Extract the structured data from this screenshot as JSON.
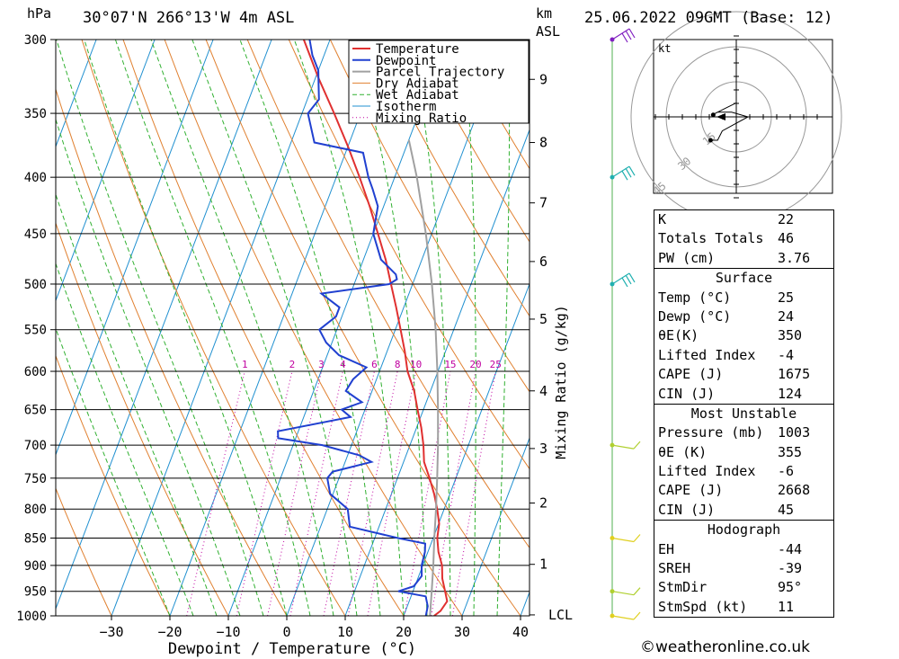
{
  "header": {
    "pressure_unit": "hPa",
    "location": "30°07'N 266°13'W 4m ASL",
    "height_unit_line1": "km",
    "height_unit_line2": "ASL",
    "datetime": "25.06.2022 09GMT (Base: 12)"
  },
  "footer": {
    "copyright": "©weatheronline.co.uk"
  },
  "chart_data": {
    "type": "line",
    "xlabel": "Dewpoint / Temperature (°C)",
    "ylabel_right": "Mixing Ratio (g/kg)",
    "pressure_levels": [
      300,
      350,
      400,
      450,
      500,
      550,
      600,
      650,
      700,
      750,
      800,
      850,
      900,
      950,
      1000
    ],
    "temperature_ticks": [
      -30,
      -20,
      -10,
      0,
      10,
      20,
      30,
      40
    ],
    "height_km_ticks": [
      {
        "label": "9",
        "p": 326
      },
      {
        "label": "8",
        "p": 372
      },
      {
        "label": "7",
        "p": 422
      },
      {
        "label": "6",
        "p": 477
      },
      {
        "label": "5",
        "p": 538
      },
      {
        "label": "4",
        "p": 625
      },
      {
        "label": "3",
        "p": 705
      },
      {
        "label": "2",
        "p": 790
      },
      {
        "label": "1",
        "p": 898
      },
      {
        "label": "LCL",
        "p": 998
      }
    ],
    "mixing_ratio_labels": [
      "1",
      "2",
      "3",
      "4",
      "6",
      "8",
      "10",
      "15",
      "20",
      "25"
    ],
    "legend": [
      "Temperature",
      "Dewpoint",
      "Parcel Trajectory",
      "Dry Adiabat",
      "Wet Adiabat",
      "Isotherm",
      "Mixing Ratio"
    ],
    "colors": {
      "Temperature": "#e03030",
      "Dewpoint": "#2040d0",
      "Parcel Trajectory": "#a0a0a0",
      "Dry Adiabat": "#e08030",
      "Wet Adiabat": "#30b030",
      "Isotherm": "#2090d0",
      "Mixing Ratio": "#c000a0"
    },
    "series": [
      {
        "name": "Temperature",
        "points": [
          [
            1000,
            25.2
          ],
          [
            990,
            26.0
          ],
          [
            970,
            26.5
          ],
          [
            950,
            25.5
          ],
          [
            925,
            24.2
          ],
          [
            900,
            23.3
          ],
          [
            875,
            21.8
          ],
          [
            850,
            20.7
          ],
          [
            825,
            20.1
          ],
          [
            800,
            18.8
          ],
          [
            775,
            17.3
          ],
          [
            750,
            15.5
          ],
          [
            725,
            13.5
          ],
          [
            700,
            12.3
          ],
          [
            675,
            10.8
          ],
          [
            650,
            9.0
          ],
          [
            625,
            7.2
          ],
          [
            600,
            4.8
          ],
          [
            575,
            3.0
          ],
          [
            550,
            0.9
          ],
          [
            525,
            -1.3
          ],
          [
            500,
            -3.7
          ],
          [
            475,
            -6.2
          ],
          [
            450,
            -9.2
          ],
          [
            425,
            -12.4
          ],
          [
            400,
            -16.0
          ],
          [
            375,
            -20.0
          ],
          [
            350,
            -24.5
          ],
          [
            325,
            -29.5
          ],
          [
            300,
            -34.5
          ]
        ]
      },
      {
        "name": "Dewpoint",
        "points": [
          [
            1000,
            23.8
          ],
          [
            980,
            23.5
          ],
          [
            960,
            22.5
          ],
          [
            950,
            17.5
          ],
          [
            940,
            19.8
          ],
          [
            920,
            20.5
          ],
          [
            900,
            19.8
          ],
          [
            875,
            19.5
          ],
          [
            860,
            19.0
          ],
          [
            850,
            14.0
          ],
          [
            830,
            5.0
          ],
          [
            800,
            3.5
          ],
          [
            775,
            -0.5
          ],
          [
            750,
            -2.0
          ],
          [
            740,
            -1.5
          ],
          [
            725,
            4.5
          ],
          [
            715,
            2.0
          ],
          [
            700,
            -5.0
          ],
          [
            690,
            -13.0
          ],
          [
            680,
            -13.5
          ],
          [
            660,
            -2.0
          ],
          [
            650,
            -4.0
          ],
          [
            640,
            -1.0
          ],
          [
            625,
            -4.5
          ],
          [
            610,
            -4.0
          ],
          [
            595,
            -2.5
          ],
          [
            580,
            -8.0
          ],
          [
            565,
            -11.0
          ],
          [
            550,
            -13.0
          ],
          [
            535,
            -11.0
          ],
          [
            525,
            -11.0
          ],
          [
            510,
            -15.0
          ],
          [
            500,
            -4.0
          ],
          [
            495,
            -3.0
          ],
          [
            490,
            -3.5
          ],
          [
            475,
            -7.0
          ],
          [
            450,
            -10.0
          ],
          [
            425,
            -11.0
          ],
          [
            410,
            -13.0
          ],
          [
            400,
            -14.5
          ],
          [
            380,
            -17.0
          ],
          [
            372,
            -26.0
          ],
          [
            350,
            -29.0
          ],
          [
            340,
            -28.0
          ],
          [
            330,
            -29.0
          ],
          [
            320,
            -30.0
          ],
          [
            310,
            -32.0
          ],
          [
            300,
            -33.5
          ]
        ]
      },
      {
        "name": "Parcel Trajectory",
        "points": [
          [
            1000,
            24.5
          ],
          [
            950,
            23.2
          ],
          [
            900,
            21.8
          ],
          [
            850,
            20.2
          ],
          [
            800,
            18.6
          ],
          [
            750,
            16.8
          ],
          [
            700,
            14.8
          ],
          [
            650,
            12.5
          ],
          [
            600,
            9.9
          ],
          [
            550,
            6.9
          ],
          [
            500,
            3.3
          ],
          [
            450,
            -1.0
          ],
          [
            400,
            -6.2
          ],
          [
            370,
            -10.0
          ]
        ]
      }
    ],
    "hodograph": {
      "unit": "kt",
      "ring_labels": [
        "15",
        "30",
        "45"
      ],
      "points": [
        [
          0,
          6
        ],
        [
          -4,
          4
        ],
        [
          -10,
          1
        ],
        [
          -8,
          2
        ],
        [
          -2,
          2
        ],
        [
          5,
          0
        ],
        [
          -6,
          -6
        ],
        [
          -8,
          -10
        ],
        [
          -11,
          -10
        ]
      ],
      "storm_motion_dir": 95,
      "storm_motion_kt": 11
    },
    "wind_barb_levels": [
      300,
      400,
      500,
      700,
      850,
      950,
      1000
    ]
  },
  "indices": {
    "top": [
      {
        "label": "K",
        "value": "22"
      },
      {
        "label": "Totals Totals",
        "value": "46"
      },
      {
        "label": "PW (cm)",
        "value": "3.76"
      }
    ],
    "surface": {
      "title": "Surface",
      "rows": [
        {
          "label": "Temp (°C)",
          "value": "25"
        },
        {
          "label": "Dewp (°C)",
          "value": "24"
        },
        {
          "label": "θE(K)",
          "value": "350"
        },
        {
          "label": "Lifted Index",
          "value": "-4"
        },
        {
          "label": "CAPE (J)",
          "value": "1675"
        },
        {
          "label": "CIN (J)",
          "value": "124"
        }
      ]
    },
    "most_unstable": {
      "title": "Most Unstable",
      "rows": [
        {
          "label": "Pressure (mb)",
          "value": "1003"
        },
        {
          "label": "θE (K)",
          "value": "355"
        },
        {
          "label": "Lifted Index",
          "value": "-6"
        },
        {
          "label": "CAPE (J)",
          "value": "2668"
        },
        {
          "label": "CIN (J)",
          "value": "45"
        }
      ]
    },
    "hodograph": {
      "title": "Hodograph",
      "rows": [
        {
          "label": "EH",
          "value": "-44"
        },
        {
          "label": "SREH",
          "value": "-39"
        },
        {
          "label": "StmDir",
          "value": "95°"
        },
        {
          "label": "StmSpd (kt)",
          "value": "11"
        }
      ]
    }
  }
}
